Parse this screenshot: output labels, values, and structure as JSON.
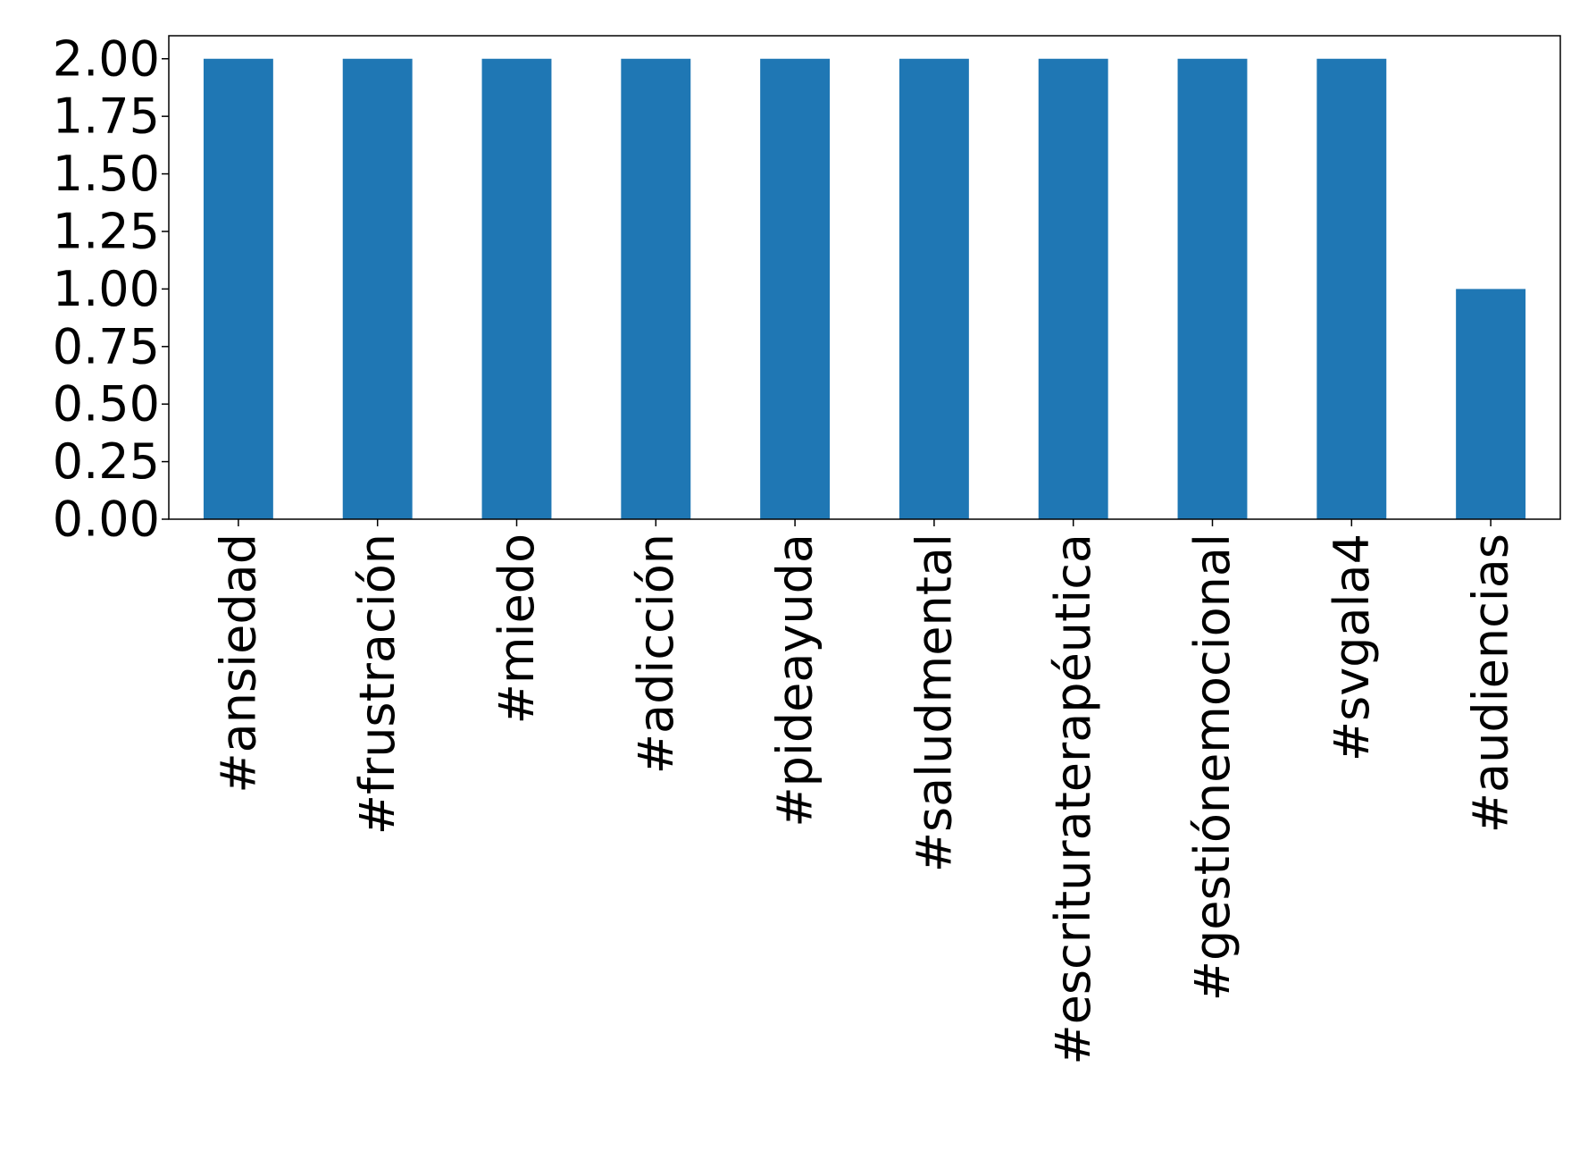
{
  "chart_data": {
    "type": "bar",
    "categories": [
      "#ansiedad",
      "#frustración",
      "#miedo",
      "#adicción",
      "#pideayuda",
      "#saludmental",
      "#escrituraterapéutica",
      "#gestiónemocional",
      "#svgala4",
      "#audiencias"
    ],
    "values": [
      2,
      2,
      2,
      2,
      2,
      2,
      2,
      2,
      2,
      1
    ],
    "ylim": [
      0,
      2.1
    ],
    "yticks": [
      "0.00",
      "0.25",
      "0.50",
      "0.75",
      "1.00",
      "1.25",
      "1.50",
      "1.75",
      "2.00"
    ],
    "grid": false,
    "legend": "none",
    "bar_color": "#1f77b4"
  }
}
